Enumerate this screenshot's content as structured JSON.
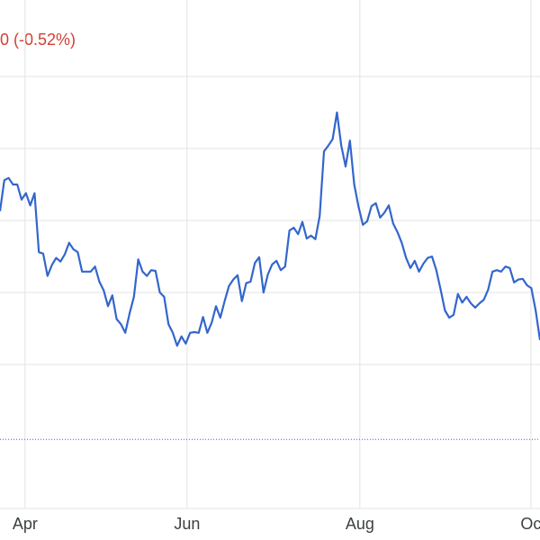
{
  "chart_data": {
    "type": "line",
    "change_label": "0 (-0.52%)",
    "color": "#3366cc",
    "change_color": "#d23f31",
    "values": [
      4.13,
      4.56,
      4.59,
      4.5,
      4.5,
      4.29,
      4.38,
      4.21,
      4.38,
      3.56,
      3.54,
      3.23,
      3.38,
      3.48,
      3.43,
      3.53,
      3.69,
      3.6,
      3.56,
      3.29,
      3.29,
      3.29,
      3.36,
      3.15,
      3.03,
      2.81,
      2.96,
      2.63,
      2.56,
      2.44,
      2.71,
      2.94,
      3.46,
      3.29,
      3.23,
      3.31,
      3.3,
      3,
      2.94,
      2.56,
      2.44,
      2.26,
      2.39,
      2.29,
      2.44,
      2.45,
      2.44,
      2.66,
      2.44,
      2.58,
      2.81,
      2.65,
      2.88,
      3.09,
      3.18,
      3.24,
      2.88,
      3.13,
      3.15,
      3.41,
      3.49,
      3,
      3.25,
      3.39,
      3.44,
      3.31,
      3.36,
      3.86,
      3.9,
      3.81,
      3.98,
      3.75,
      3.79,
      3.74,
      4.06,
      4.96,
      5.04,
      5.13,
      5.5,
      5.04,
      4.75,
      5.11,
      4.5,
      4.19,
      3.94,
      3.99,
      4.2,
      4.24,
      4.04,
      4.11,
      4.21,
      3.96,
      3.84,
      3.69,
      3.48,
      3.34,
      3.44,
      3.29,
      3.4,
      3.48,
      3.5,
      3.31,
      3.04,
      2.75,
      2.65,
      2.69,
      2.98,
      2.86,
      2.94,
      2.85,
      2.79,
      2.85,
      2.9,
      3.04,
      3.29,
      3.31,
      3.29,
      3.36,
      3.34,
      3.14,
      3.18,
      3.19,
      3.1,
      3.06,
      2.75,
      2.34
    ],
    "xlim": [
      0,
      125
    ],
    "xticks": [
      {
        "value": 5.8,
        "label": "Apr"
      },
      {
        "value": 43.3,
        "label": "Jun"
      },
      {
        "value": 83.3,
        "label": "Aug"
      },
      {
        "value": 122.9,
        "label": "Oc"
      }
    ],
    "ylim": [
      0,
      7
    ],
    "ygrid": [
      2,
      3,
      4,
      5,
      6
    ],
    "reference_line": 0.96,
    "grid": true
  }
}
